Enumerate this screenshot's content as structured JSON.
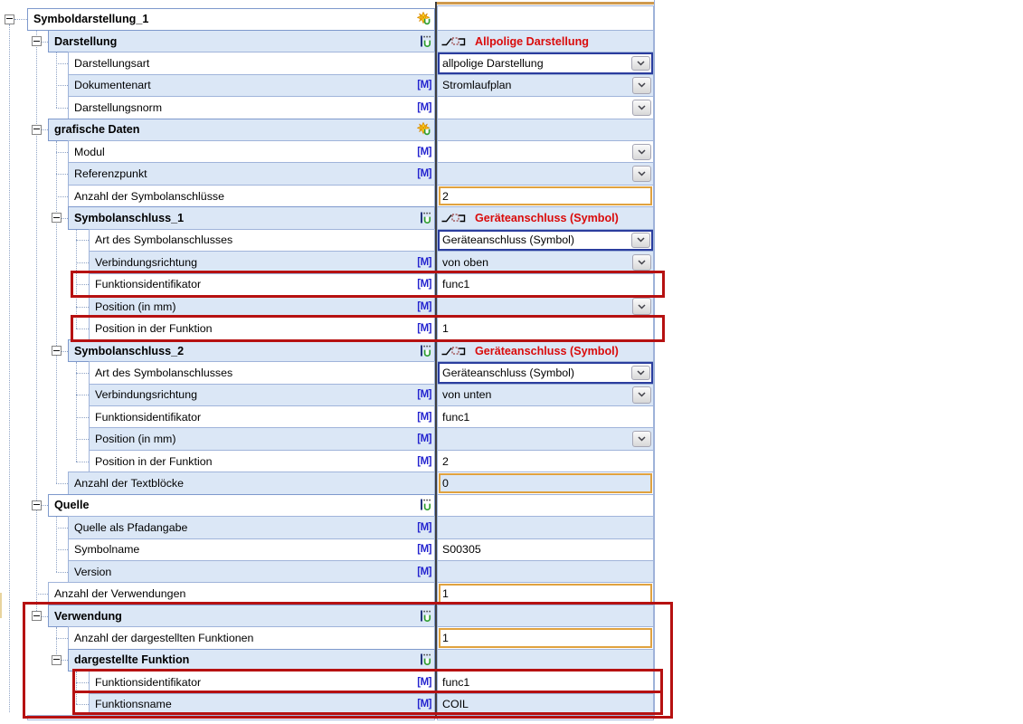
{
  "icons": {
    "modified_flag": "[M]",
    "group_new": "star-icon",
    "group_sub": "subobject-icon",
    "header_symbol": "symbol-connection-icon",
    "dropdown": "chevron-down-icon"
  },
  "palette": {
    "zebra_blue": "#dbe7f6",
    "grid_border": "#a0b4da",
    "accent_red_text": "#da0b0b",
    "annotation_red": "#b61111",
    "orange_input": "#e0a23f",
    "selected_blue": "#2b3d9e",
    "m_flag_blue": "#2323cf"
  },
  "rows": [
    {
      "label": "Symboldarstellung_1",
      "level": 0,
      "group": true,
      "icon": "star",
      "m": false,
      "value": {
        "type": "empty",
        "text": ""
      }
    },
    {
      "label": "Darstellung",
      "level": 1,
      "group": true,
      "icon": "bracket",
      "m": false,
      "value": {
        "type": "header",
        "text": "Allpolige Darstellung"
      }
    },
    {
      "label": "Darstellungsart",
      "level": 2,
      "group": false,
      "icon": null,
      "m": false,
      "value": {
        "type": "select",
        "text": "allpolige Darstellung"
      }
    },
    {
      "label": "Dokumentenart",
      "level": 2,
      "group": false,
      "icon": null,
      "m": true,
      "value": {
        "type": "dd",
        "text": "Stromlaufplan"
      }
    },
    {
      "label": "Darstellungsnorm",
      "level": 2,
      "group": false,
      "icon": null,
      "m": true,
      "value": {
        "type": "dd",
        "text": ""
      }
    },
    {
      "label": "grafische Daten",
      "level": 1,
      "group": true,
      "icon": "star",
      "m": false,
      "value": {
        "type": "empty",
        "text": ""
      }
    },
    {
      "label": "Modul",
      "level": 2,
      "group": false,
      "icon": null,
      "m": true,
      "value": {
        "type": "dd",
        "text": ""
      }
    },
    {
      "label": "Referenzpunkt",
      "level": 2,
      "group": false,
      "icon": null,
      "m": true,
      "value": {
        "type": "dd",
        "text": ""
      }
    },
    {
      "label": "Anzahl der Symbolanschlüsse",
      "level": 2,
      "group": false,
      "icon": null,
      "m": false,
      "value": {
        "type": "num",
        "text": "2"
      }
    },
    {
      "label": "Symbolanschluss_1",
      "level": 2,
      "group": true,
      "icon": "bracket",
      "m": false,
      "value": {
        "type": "header",
        "text": "Geräteanschluss (Symbol)"
      }
    },
    {
      "label": "Art des Symbolanschlusses",
      "level": 3,
      "group": false,
      "icon": null,
      "m": false,
      "value": {
        "type": "select",
        "text": "Geräteanschluss (Symbol)"
      }
    },
    {
      "label": "Verbindungsrichtung",
      "level": 3,
      "group": false,
      "icon": null,
      "m": true,
      "value": {
        "type": "dd",
        "text": "von oben"
      }
    },
    {
      "label": "Funktionsidentifikator",
      "level": 3,
      "group": false,
      "icon": null,
      "m": true,
      "value": {
        "type": "text",
        "text": "func1"
      }
    },
    {
      "label": "Position (in mm)",
      "level": 3,
      "group": false,
      "icon": null,
      "m": true,
      "value": {
        "type": "dd",
        "text": ""
      }
    },
    {
      "label": "Position in der Funktion",
      "level": 3,
      "group": false,
      "icon": null,
      "m": true,
      "value": {
        "type": "text",
        "text": "1"
      }
    },
    {
      "label": "Symbolanschluss_2",
      "level": 2,
      "group": true,
      "icon": "bracket",
      "m": false,
      "value": {
        "type": "header",
        "text": "Geräteanschluss (Symbol)"
      }
    },
    {
      "label": "Art des Symbolanschlusses",
      "level": 3,
      "group": false,
      "icon": null,
      "m": false,
      "value": {
        "type": "select",
        "text": "Geräteanschluss (Symbol)"
      }
    },
    {
      "label": "Verbindungsrichtung",
      "level": 3,
      "group": false,
      "icon": null,
      "m": true,
      "value": {
        "type": "dd",
        "text": "von unten"
      }
    },
    {
      "label": "Funktionsidentifikator",
      "level": 3,
      "group": false,
      "icon": null,
      "m": true,
      "value": {
        "type": "text",
        "text": "func1"
      }
    },
    {
      "label": "Position (in mm)",
      "level": 3,
      "group": false,
      "icon": null,
      "m": true,
      "value": {
        "type": "dd",
        "text": ""
      }
    },
    {
      "label": "Position in der Funktion",
      "level": 3,
      "group": false,
      "icon": null,
      "m": true,
      "value": {
        "type": "text",
        "text": "2"
      }
    },
    {
      "label": "Anzahl der Textblöcke",
      "level": 2,
      "group": false,
      "icon": null,
      "m": false,
      "value": {
        "type": "num",
        "text": "0"
      }
    },
    {
      "label": "Quelle",
      "level": 1,
      "group": true,
      "icon": "bracket",
      "m": false,
      "value": {
        "type": "empty",
        "text": ""
      }
    },
    {
      "label": "Quelle als Pfadangabe",
      "level": 2,
      "group": false,
      "icon": null,
      "m": true,
      "value": {
        "type": "empty",
        "text": ""
      }
    },
    {
      "label": "Symbolname",
      "level": 2,
      "group": false,
      "icon": null,
      "m": true,
      "value": {
        "type": "text",
        "text": "S00305"
      }
    },
    {
      "label": "Version",
      "level": 2,
      "group": false,
      "icon": null,
      "m": true,
      "value": {
        "type": "empty",
        "text": ""
      }
    },
    {
      "label": "Anzahl der Verwendungen",
      "level": 1,
      "group": false,
      "icon": null,
      "m": false,
      "value": {
        "type": "num",
        "text": "1"
      }
    },
    {
      "label": "Verwendung",
      "level": 1,
      "group": true,
      "icon": "bracket",
      "m": false,
      "value": {
        "type": "empty",
        "text": ""
      }
    },
    {
      "label": "Anzahl der dargestellten Funktionen",
      "level": 2,
      "group": false,
      "icon": null,
      "m": false,
      "value": {
        "type": "num",
        "text": "1"
      }
    },
    {
      "label": "dargestellte Funktion",
      "level": 2,
      "group": true,
      "icon": "bracket",
      "m": false,
      "value": {
        "type": "empty",
        "text": ""
      }
    },
    {
      "label": "Funktionsidentifikator",
      "level": 3,
      "group": false,
      "icon": null,
      "m": true,
      "value": {
        "type": "text",
        "text": "func1"
      }
    },
    {
      "label": "Funktionsname",
      "level": 3,
      "group": false,
      "icon": null,
      "m": true,
      "value": {
        "type": "text",
        "text": "COIL"
      }
    }
  ],
  "annotations": [
    {
      "target": "Funktionsidentifikator (Symbolanschluss_1) = func1"
    },
    {
      "target": "Position in der Funktion (Symbolanschluss_1) = 1"
    },
    {
      "target": "Verwendung block"
    },
    {
      "target": "Funktionsidentifikator (dargestellte Funktion) = func1"
    },
    {
      "target": "Funktionsname (dargestellte Funktion) = COIL"
    }
  ]
}
